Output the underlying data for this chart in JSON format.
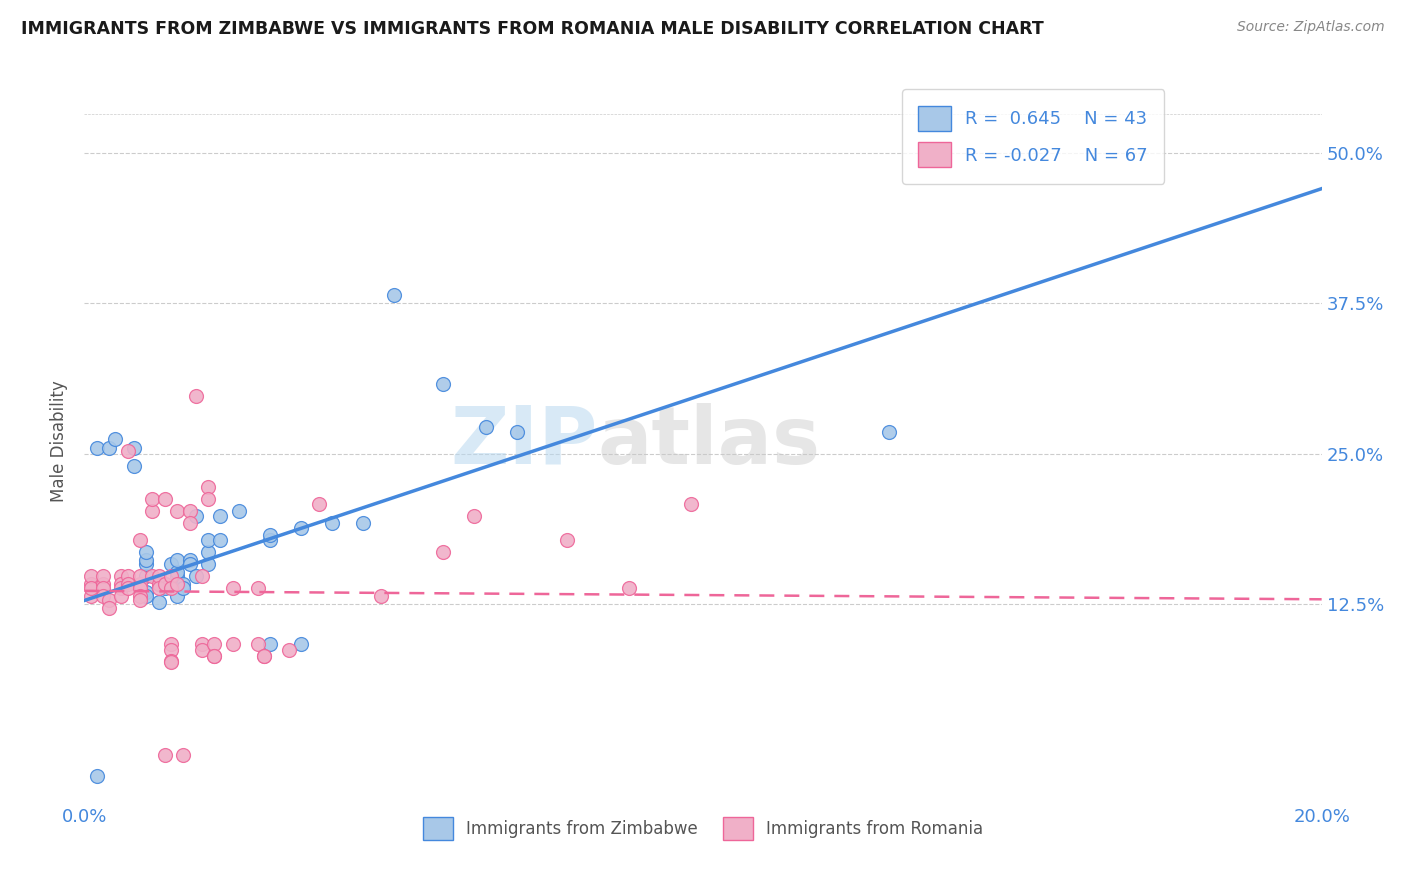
{
  "title": "IMMIGRANTS FROM ZIMBABWE VS IMMIGRANTS FROM ROMANIA MALE DISABILITY CORRELATION CHART",
  "source": "Source: ZipAtlas.com",
  "ylabel": "Male Disability",
  "ytick_values": [
    0.125,
    0.25,
    0.375,
    0.5
  ],
  "ytick_labels": [
    "12.5%",
    "25.0%",
    "37.5%",
    "50.0%"
  ],
  "xlim": [
    0.0,
    0.2
  ],
  "ylim": [
    -0.04,
    0.56
  ],
  "color_zimbabwe": "#a8c8e8",
  "color_romania": "#f0b0c8",
  "line_color_zimbabwe": "#4488dd",
  "line_color_romania": "#ee6699",
  "watermark_zip": "ZIP",
  "watermark_atlas": "atlas",
  "reg_zimbabwe": [
    0.0,
    0.2,
    0.128,
    0.47
  ],
  "reg_romania": [
    0.0,
    0.2,
    0.136,
    0.129
  ],
  "zimbabwe_scatter": [
    [
      0.002,
      0.255
    ],
    [
      0.004,
      0.255
    ],
    [
      0.005,
      0.262
    ],
    [
      0.008,
      0.24
    ],
    [
      0.008,
      0.255
    ],
    [
      0.01,
      0.135
    ],
    [
      0.01,
      0.148
    ],
    [
      0.01,
      0.158
    ],
    [
      0.01,
      0.162
    ],
    [
      0.01,
      0.168
    ],
    [
      0.01,
      0.132
    ],
    [
      0.012,
      0.142
    ],
    [
      0.012,
      0.127
    ],
    [
      0.013,
      0.138
    ],
    [
      0.013,
      0.142
    ],
    [
      0.014,
      0.158
    ],
    [
      0.015,
      0.148
    ],
    [
      0.015,
      0.152
    ],
    [
      0.015,
      0.162
    ],
    [
      0.015,
      0.132
    ],
    [
      0.016,
      0.142
    ],
    [
      0.016,
      0.138
    ],
    [
      0.017,
      0.162
    ],
    [
      0.017,
      0.158
    ],
    [
      0.018,
      0.148
    ],
    [
      0.018,
      0.198
    ],
    [
      0.02,
      0.158
    ],
    [
      0.02,
      0.168
    ],
    [
      0.02,
      0.178
    ],
    [
      0.022,
      0.178
    ],
    [
      0.022,
      0.198
    ],
    [
      0.025,
      0.202
    ],
    [
      0.03,
      0.178
    ],
    [
      0.03,
      0.182
    ],
    [
      0.03,
      0.092
    ],
    [
      0.035,
      0.188
    ],
    [
      0.035,
      0.092
    ],
    [
      0.04,
      0.192
    ],
    [
      0.045,
      0.192
    ],
    [
      0.05,
      0.382
    ],
    [
      0.058,
      0.308
    ],
    [
      0.065,
      0.272
    ],
    [
      0.07,
      0.268
    ],
    [
      0.13,
      0.268
    ],
    [
      0.002,
      -0.018
    ]
  ],
  "romania_scatter": [
    [
      0.001,
      0.142
    ],
    [
      0.001,
      0.148
    ],
    [
      0.001,
      0.132
    ],
    [
      0.001,
      0.138
    ],
    [
      0.003,
      0.142
    ],
    [
      0.003,
      0.148
    ],
    [
      0.003,
      0.138
    ],
    [
      0.003,
      0.132
    ],
    [
      0.004,
      0.128
    ],
    [
      0.004,
      0.122
    ],
    [
      0.006,
      0.148
    ],
    [
      0.006,
      0.142
    ],
    [
      0.006,
      0.138
    ],
    [
      0.006,
      0.132
    ],
    [
      0.007,
      0.148
    ],
    [
      0.007,
      0.142
    ],
    [
      0.007,
      0.138
    ],
    [
      0.007,
      0.252
    ],
    [
      0.009,
      0.142
    ],
    [
      0.009,
      0.148
    ],
    [
      0.009,
      0.138
    ],
    [
      0.009,
      0.132
    ],
    [
      0.009,
      0.128
    ],
    [
      0.009,
      0.178
    ],
    [
      0.011,
      0.148
    ],
    [
      0.011,
      0.202
    ],
    [
      0.011,
      0.212
    ],
    [
      0.012,
      0.142
    ],
    [
      0.012,
      0.148
    ],
    [
      0.012,
      0.138
    ],
    [
      0.013,
      0.142
    ],
    [
      0.013,
      0.212
    ],
    [
      0.014,
      0.148
    ],
    [
      0.014,
      0.138
    ],
    [
      0.014,
      0.092
    ],
    [
      0.014,
      0.087
    ],
    [
      0.014,
      0.078
    ],
    [
      0.014,
      0.077
    ],
    [
      0.015,
      0.142
    ],
    [
      0.015,
      0.202
    ],
    [
      0.016,
      0.0
    ],
    [
      0.017,
      0.202
    ],
    [
      0.017,
      0.192
    ],
    [
      0.018,
      0.298
    ],
    [
      0.019,
      0.148
    ],
    [
      0.019,
      0.092
    ],
    [
      0.019,
      0.087
    ],
    [
      0.02,
      0.222
    ],
    [
      0.02,
      0.212
    ],
    [
      0.021,
      0.092
    ],
    [
      0.021,
      0.082
    ],
    [
      0.021,
      0.082
    ],
    [
      0.024,
      0.138
    ],
    [
      0.024,
      0.092
    ],
    [
      0.028,
      0.138
    ],
    [
      0.028,
      0.092
    ],
    [
      0.029,
      0.082
    ],
    [
      0.029,
      0.082
    ],
    [
      0.033,
      0.087
    ],
    [
      0.038,
      0.208
    ],
    [
      0.048,
      0.132
    ],
    [
      0.058,
      0.168
    ],
    [
      0.063,
      0.198
    ],
    [
      0.078,
      0.178
    ],
    [
      0.088,
      0.138
    ],
    [
      0.098,
      0.208
    ],
    [
      0.013,
      0.0
    ]
  ]
}
